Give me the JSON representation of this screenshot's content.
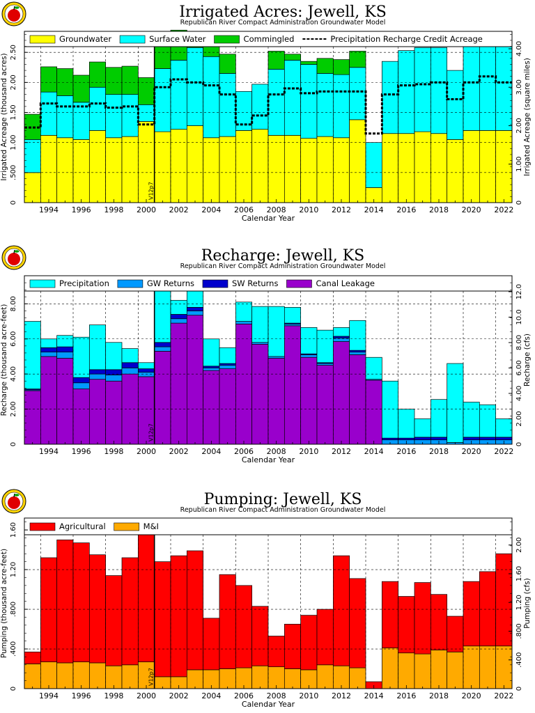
{
  "years": [
    1993,
    1994,
    1995,
    1996,
    1997,
    1998,
    1999,
    2000,
    2001,
    2002,
    2003,
    2004,
    2005,
    2006,
    2007,
    2008,
    2009,
    2010,
    2011,
    2012,
    2013,
    2014,
    2015,
    2016,
    2017,
    2018,
    2019,
    2020,
    2021,
    2022
  ],
  "marker": {
    "label": "V12p7",
    "after_year": 2000
  },
  "chart_data": [
    {
      "type": "bar",
      "stacked": true,
      "title": "Irrigated Acres: Jewell, KS",
      "subtitle": "Republican River Compact Administration Groundwater Model",
      "xlabel": "Calendar Year",
      "ylabel": "Irrigated Acreage (thousand acres)",
      "ylabel_right": "Irrigated Acreage (square miles)",
      "ylim": [
        0,
        2.85
      ],
      "yticks": [
        "0",
        ".500",
        "1.00",
        "1.50",
        "2.00",
        "2.50"
      ],
      "y2ticks": [
        "0",
        "1.00",
        "2.00",
        "3.00",
        "4.00"
      ],
      "y2_scale": 1.5625,
      "xticks": [
        "1994",
        "1996",
        "1998",
        "2000",
        "2002",
        "2004",
        "2006",
        "2008",
        "2010",
        "2012",
        "2014",
        "2016",
        "2018",
        "2020",
        "2022"
      ],
      "series": [
        {
          "name": "Groundwater",
          "color": "#ffff00",
          "values": [
            0.5,
            1.12,
            1.08,
            1.05,
            1.2,
            1.08,
            1.1,
            1.35,
            1.18,
            1.22,
            1.28,
            1.08,
            1.1,
            1.2,
            1.22,
            1.12,
            1.12,
            1.07,
            1.1,
            1.08,
            1.38,
            0.25,
            1.15,
            1.15,
            1.18,
            1.15,
            1.05,
            1.2,
            1.2,
            1.2
          ]
        },
        {
          "name": "Surface Water",
          "color": "#00ffff",
          "values": [
            0.55,
            0.72,
            0.7,
            0.62,
            0.72,
            0.72,
            0.7,
            0.28,
            1.05,
            1.15,
            1.3,
            1.35,
            1.05,
            0.65,
            0.75,
            1.1,
            1.25,
            1.23,
            1.05,
            1.05,
            0.87,
            0.75,
            1.2,
            1.38,
            1.4,
            1.43,
            1.15,
            1.53,
            1.65,
            1.5
          ]
        },
        {
          "name": "Commingled",
          "color": "#00cc00",
          "values": [
            0.42,
            0.42,
            0.45,
            0.45,
            0.42,
            0.45,
            0.47,
            0.45,
            0.5,
            0.5,
            0.17,
            0.18,
            0.32,
            0,
            0,
            0.3,
            0.1,
            0.05,
            0.25,
            0.25,
            0.27,
            0,
            0,
            0,
            0,
            0,
            0,
            0,
            0,
            0
          ]
        }
      ],
      "overlay": {
        "name": "Precipitation Recharge Credit Acreage",
        "style": "dashed",
        "values": [
          1.25,
          1.65,
          1.6,
          1.6,
          1.65,
          1.58,
          1.6,
          1.3,
          1.92,
          2.05,
          2.0,
          1.95,
          1.8,
          1.3,
          1.45,
          1.8,
          1.9,
          1.82,
          1.85,
          1.85,
          1.85,
          1.15,
          1.8,
          1.95,
          1.97,
          2.0,
          1.72,
          2.0,
          2.1,
          2.0
        ]
      },
      "legend_position": "top",
      "grid": true
    },
    {
      "type": "bar",
      "stacked": true,
      "title": "Recharge: Jewell, KS",
      "subtitle": "Republican River Compact Administration Groundwater Model",
      "xlabel": "Calendar Year",
      "ylabel": "Recharge (thousand acre-feet)",
      "ylabel_right": "Recharge (cfs)",
      "ylim": [
        0,
        9.6
      ],
      "yticks": [
        "0",
        "2.00",
        "4.00",
        "6.00",
        "8.00"
      ],
      "y2ticks": [
        "0",
        "2.00",
        "4.00",
        "6.00",
        "8.00",
        "10.0",
        "12.0"
      ],
      "y2_scale": 1.381,
      "xticks": [
        "1994",
        "1996",
        "1998",
        "2000",
        "2002",
        "2004",
        "2006",
        "2008",
        "2010",
        "2012",
        "2014",
        "2016",
        "2018",
        "2020",
        "2022"
      ],
      "series": [
        {
          "name": "Canal Leakage",
          "color": "#9900cc",
          "values": [
            3.05,
            5.0,
            4.9,
            3.15,
            3.7,
            3.6,
            4.0,
            3.85,
            5.3,
            6.9,
            7.35,
            4.2,
            4.3,
            6.85,
            5.7,
            4.9,
            6.75,
            4.95,
            4.5,
            5.85,
            5.1,
            3.65,
            0,
            0,
            0,
            0,
            0,
            0,
            0,
            0
          ]
        },
        {
          "name": "GW Returns",
          "color": "#0099ff",
          "values": [
            0.05,
            0.25,
            0.35,
            0.35,
            0.3,
            0.35,
            0.35,
            0.25,
            0.25,
            0.25,
            0.25,
            0.15,
            0.2,
            0.15,
            0.1,
            0.1,
            0.1,
            0.15,
            0.1,
            0.2,
            0.15,
            0.05,
            0.25,
            0.25,
            0.25,
            0.25,
            0.1,
            0.25,
            0.25,
            0.25
          ]
        },
        {
          "name": "SW Returns",
          "color": "#0000cc",
          "values": [
            0.05,
            0.25,
            0.3,
            0.3,
            0.25,
            0.3,
            0.3,
            0.2,
            0.25,
            0.25,
            0.2,
            0.1,
            0.1,
            0.0,
            0.0,
            0.0,
            0.05,
            0.05,
            0.05,
            0.1,
            0.1,
            0.0,
            0.1,
            0.1,
            0.15,
            0.15,
            0.0,
            0.15,
            0.15,
            0.15
          ]
        },
        {
          "name": "Precipitation",
          "color": "#00ffff",
          "values": [
            3.85,
            0.5,
            0.65,
            2.3,
            2.55,
            1.55,
            0.8,
            0.35,
            3.4,
            0.8,
            1.7,
            1.55,
            0.9,
            1.1,
            2.05,
            2.85,
            0.9,
            1.5,
            1.85,
            0.5,
            1.7,
            1.25,
            3.25,
            1.65,
            1.05,
            2.15,
            4.5,
            2.0,
            1.85,
            1.05
          ]
        }
      ],
      "legend_order": [
        "Precipitation",
        "GW Returns",
        "SW Returns",
        "Canal Leakage"
      ],
      "legend_position": "top",
      "grid": true
    },
    {
      "type": "bar",
      "stacked": true,
      "title": "Pumping: Jewell, KS",
      "subtitle": "Republican River Compact Administration Groundwater Model",
      "xlabel": "Calendar Year",
      "ylabel": "Pumping (thousand acre-feet)",
      "ylabel_right": "Pumping (cfs)",
      "ylim": [
        0,
        1.72
      ],
      "yticks": [
        "0",
        ".400",
        ".800",
        "1.20",
        "1.60"
      ],
      "y2ticks": [
        "0",
        ".400",
        ".800",
        "1.20",
        "1.60",
        "2.00"
      ],
      "y2_scale": 1.3812,
      "xticks": [
        "1994",
        "1996",
        "1998",
        "2000",
        "2002",
        "2004",
        "2006",
        "2008",
        "2010",
        "2012",
        "2014",
        "2016",
        "2018",
        "2020",
        "2022"
      ],
      "series": [
        {
          "name": "M&I",
          "color": "#ffaa00",
          "values": [
            0.25,
            0.27,
            0.26,
            0.27,
            0.26,
            0.23,
            0.24,
            0.27,
            0.12,
            0.12,
            0.19,
            0.19,
            0.2,
            0.21,
            0.23,
            0.22,
            0.2,
            0.19,
            0.24,
            0.23,
            0.21,
            0.0,
            0.41,
            0.36,
            0.35,
            0.39,
            0.37,
            0.43,
            0.43,
            0.43
          ]
        },
        {
          "name": "Agricultural",
          "color": "#ff0000",
          "values": [
            0.12,
            1.05,
            1.24,
            1.2,
            1.09,
            0.91,
            1.08,
            1.39,
            1.16,
            1.22,
            1.2,
            0.52,
            0.95,
            0.83,
            0.6,
            0.31,
            0.45,
            0.55,
            0.56,
            1.11,
            0.9,
            0.07,
            0.67,
            0.57,
            0.72,
            0.56,
            0.36,
            0.65,
            0.75,
            0.93
          ]
        }
      ],
      "legend_order": [
        "Agricultural",
        "M&I"
      ],
      "legend_position": "top",
      "grid": true
    }
  ]
}
